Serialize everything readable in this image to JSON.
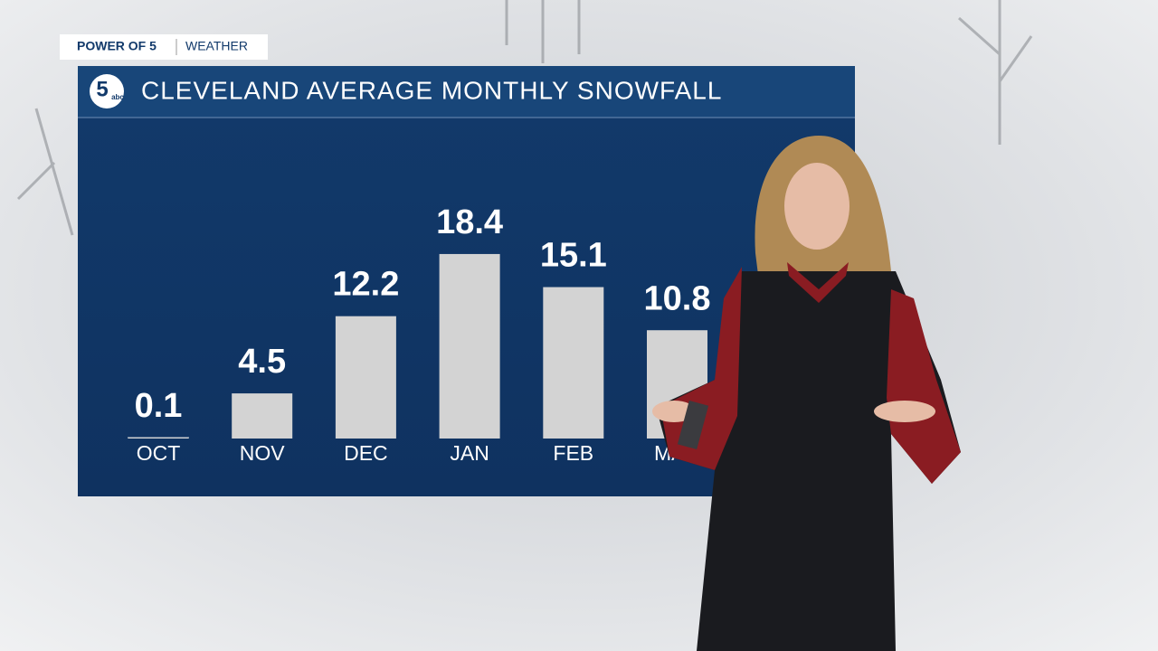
{
  "header": {
    "brand": "POWER OF 5",
    "section": "WEATHER"
  },
  "logo": {
    "number": "5",
    "network": "abc"
  },
  "chart_data": {
    "type": "bar",
    "title": "CLEVELAND AVERAGE MONTHLY SNOWFALL",
    "categories": [
      "OCT",
      "NOV",
      "DEC",
      "JAN",
      "FEB",
      "MAR"
    ],
    "values": [
      0.1,
      4.5,
      12.2,
      18.4,
      15.1,
      10.8
    ],
    "color": "#d3d3d3"
  }
}
